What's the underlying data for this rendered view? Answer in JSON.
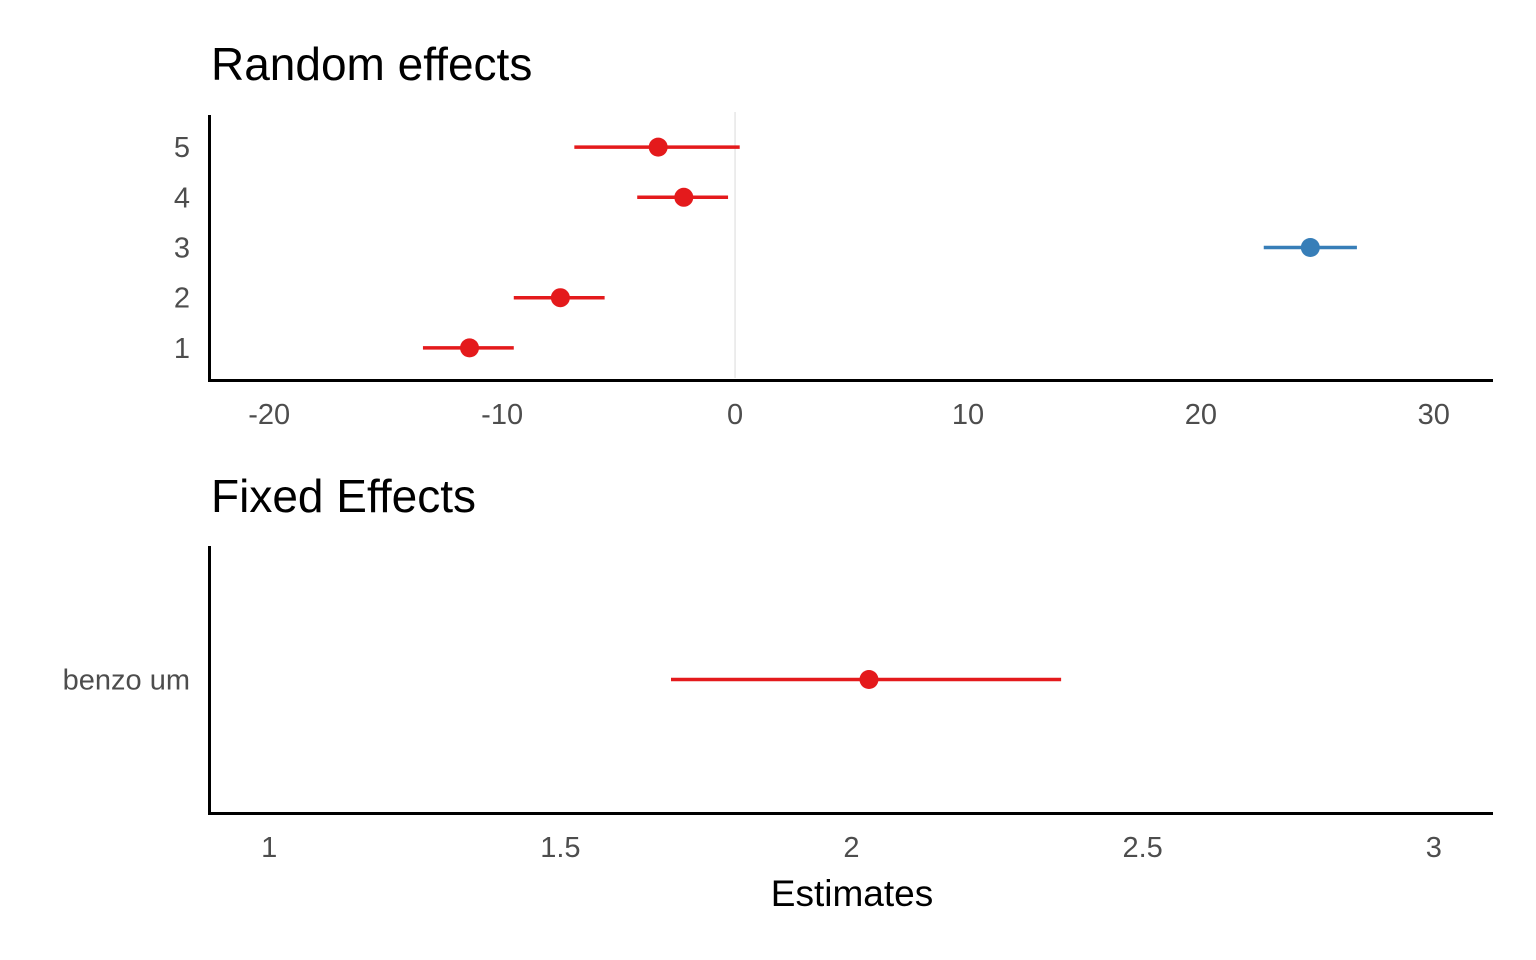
{
  "chart_data": [
    {
      "type": "scatter",
      "subtype": "forest-plot",
      "title": "Random effects",
      "xlabel": "",
      "ylabel": "",
      "xlim": [
        -22.5,
        32.5
      ],
      "xticks": [
        -20,
        -10,
        0,
        10,
        20,
        30
      ],
      "xtick_labels": [
        "-20",
        "-10",
        "0",
        "10",
        "20",
        "30"
      ],
      "categories": [
        "1",
        "2",
        "3",
        "4",
        "5"
      ],
      "reference_line": 0,
      "points": [
        {
          "label": "1",
          "estimate": -11.4,
          "ci_low": -13.4,
          "ci_high": -9.5,
          "color": "#e41a1c"
        },
        {
          "label": "2",
          "estimate": -7.5,
          "ci_low": -9.5,
          "ci_high": -5.6,
          "color": "#e41a1c"
        },
        {
          "label": "3",
          "estimate": 24.7,
          "ci_low": 22.7,
          "ci_high": 26.7,
          "color": "#377eb8"
        },
        {
          "label": "4",
          "estimate": -2.2,
          "ci_low": -4.2,
          "ci_high": -0.3,
          "color": "#e41a1c"
        },
        {
          "label": "5",
          "estimate": -3.3,
          "ci_low": -6.9,
          "ci_high": 0.2,
          "color": "#e41a1c"
        }
      ],
      "grid": false
    },
    {
      "type": "scatter",
      "subtype": "forest-plot",
      "title": "Fixed Effects",
      "xlabel": "Estimates",
      "ylabel": "",
      "xlim": [
        0.9,
        3.1
      ],
      "xticks": [
        1,
        1.5,
        2,
        2.5,
        3
      ],
      "xtick_labels": [
        "1",
        "1.5",
        "2",
        "2.5",
        "3"
      ],
      "categories": [
        "benzo um"
      ],
      "points": [
        {
          "label": "benzo um",
          "estimate": 2.03,
          "ci_low": 1.69,
          "ci_high": 2.36,
          "color": "#e41a1c"
        }
      ],
      "grid": false
    }
  ]
}
